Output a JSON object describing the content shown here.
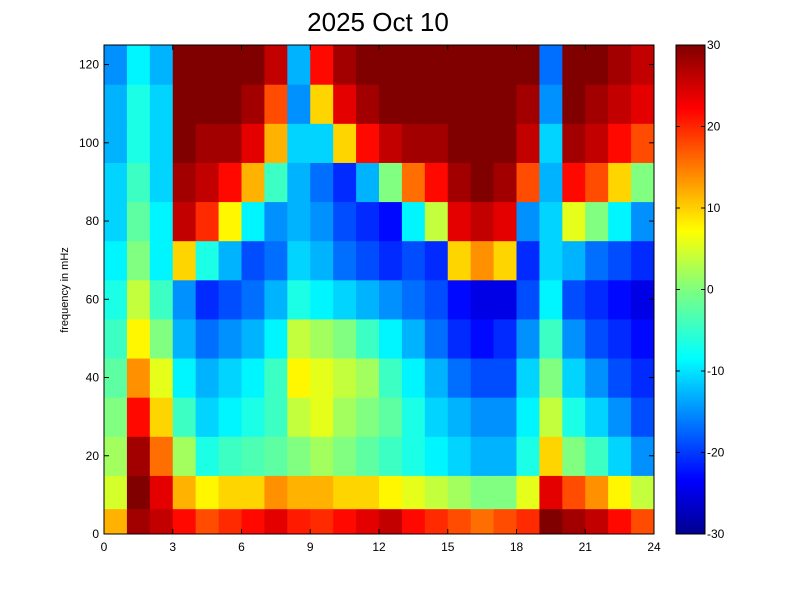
{
  "chart_data": {
    "type": "heatmap",
    "title": "2025 Oct 10",
    "xlabel": "",
    "ylabel": "frequency in mHz",
    "xlim": [
      0,
      24
    ],
    "ylim": [
      0,
      125
    ],
    "xticks": [
      "0",
      "3",
      "6",
      "9",
      "12",
      "15",
      "18",
      "21",
      "24"
    ],
    "xtick_values": [
      0,
      3,
      6,
      9,
      12,
      15,
      18,
      21,
      24
    ],
    "yticks": [
      "0",
      "20",
      "40",
      "60",
      "80",
      "100",
      "120"
    ],
    "ytick_values": [
      0,
      20,
      40,
      60,
      80,
      100,
      120
    ],
    "colorbar": {
      "colormap": "jet",
      "clim": [
        -30,
        30
      ],
      "ticks": [
        "-30",
        "-20",
        "-10",
        "0",
        "10",
        "20",
        "30"
      ],
      "tick_values": [
        -30,
        -20,
        -10,
        0,
        10,
        20,
        30
      ]
    },
    "grid": false,
    "rows_frequency_mHz": [
      3,
      10,
      20,
      30,
      40,
      50,
      60,
      70,
      80,
      90,
      100,
      110,
      120
    ],
    "columns_hour": [
      0.5,
      1.5,
      2.5,
      3.5,
      4.5,
      5.5,
      6.5,
      7.5,
      8.5,
      9.5,
      10.5,
      11.5,
      12.5,
      13.5,
      14.5,
      15.5,
      16.5,
      17.5,
      18.5,
      19.5,
      20.5,
      21.5,
      22.5,
      23.5
    ],
    "values": [
      [
        12,
        28,
        26,
        22,
        18,
        20,
        22,
        24,
        21,
        20,
        22,
        24,
        26,
        22,
        20,
        18,
        16,
        18,
        20,
        30,
        28,
        26,
        22,
        18
      ],
      [
        5,
        30,
        24,
        12,
        8,
        10,
        10,
        14,
        12,
        12,
        10,
        10,
        8,
        6,
        4,
        2,
        0,
        0,
        6,
        24,
        18,
        14,
        8,
        4
      ],
      [
        2,
        28,
        16,
        2,
        -6,
        -4,
        -3,
        -2,
        0,
        2,
        0,
        -2,
        -4,
        -6,
        -8,
        -10,
        -12,
        -12,
        -6,
        10,
        0,
        -4,
        -10,
        -14
      ],
      [
        0,
        22,
        10,
        -4,
        -10,
        -8,
        -6,
        -4,
        4,
        6,
        2,
        0,
        -2,
        -6,
        -10,
        -12,
        -14,
        -14,
        -8,
        4,
        -6,
        -10,
        -14,
        -18
      ],
      [
        -2,
        14,
        6,
        -8,
        -12,
        -10,
        -8,
        -4,
        8,
        6,
        4,
        2,
        -4,
        -8,
        -12,
        -16,
        -18,
        -18,
        -10,
        0,
        -10,
        -14,
        -18,
        -20
      ],
      [
        -4,
        8,
        0,
        -12,
        -16,
        -14,
        -12,
        -8,
        4,
        2,
        0,
        -4,
        -8,
        -12,
        -16,
        -20,
        -22,
        -20,
        -14,
        -4,
        -14,
        -18,
        -20,
        -22
      ],
      [
        -6,
        4,
        -4,
        -14,
        -20,
        -18,
        -16,
        -12,
        -6,
        -8,
        -10,
        -12,
        -14,
        -16,
        -18,
        -22,
        -24,
        -24,
        -18,
        -8,
        -18,
        -20,
        -22,
        -24
      ],
      [
        -8,
        0,
        -8,
        10,
        -6,
        -12,
        -18,
        -16,
        -10,
        -12,
        -16,
        -18,
        -20,
        -18,
        -20,
        10,
        14,
        10,
        -20,
        -10,
        -12,
        -16,
        -18,
        -20
      ],
      [
        -10,
        -2,
        -8,
        26,
        20,
        8,
        -8,
        -14,
        -12,
        -14,
        -18,
        -20,
        -22,
        -8,
        4,
        24,
        26,
        24,
        -14,
        -10,
        6,
        0,
        -8,
        -14
      ],
      [
        -10,
        -4,
        -10,
        28,
        26,
        22,
        12,
        -4,
        -12,
        -16,
        -20,
        -12,
        0,
        16,
        22,
        28,
        30,
        28,
        18,
        -12,
        22,
        18,
        10,
        0
      ],
      [
        -12,
        -6,
        -10,
        30,
        28,
        28,
        24,
        12,
        -10,
        -10,
        10,
        22,
        26,
        28,
        28,
        30,
        30,
        30,
        26,
        -10,
        28,
        26,
        22,
        18
      ],
      [
        -12,
        -6,
        -10,
        30,
        30,
        30,
        28,
        18,
        -14,
        10,
        24,
        28,
        30,
        30,
        30,
        30,
        30,
        30,
        28,
        -14,
        30,
        28,
        26,
        24
      ],
      [
        -14,
        -8,
        -12,
        30,
        30,
        30,
        30,
        26,
        -12,
        22,
        28,
        30,
        30,
        30,
        30,
        30,
        30,
        30,
        30,
        -16,
        30,
        30,
        28,
        26
      ]
    ]
  }
}
